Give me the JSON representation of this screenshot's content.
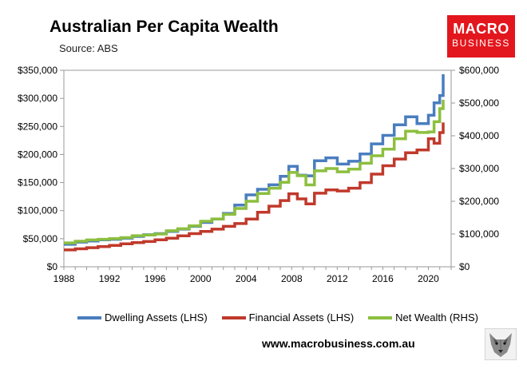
{
  "header": {
    "title": "Australian Per Capita Wealth",
    "source": "Source: ABS"
  },
  "logo": {
    "line1": "MACRO",
    "line2": "BUSINESS"
  },
  "footer": {
    "url": "www.macrobusiness.com.au"
  },
  "chart_data": {
    "type": "line",
    "title": "Australian Per Capita Wealth",
    "y_left": {
      "min": 0,
      "max": 350000,
      "step": 50000,
      "tick_labels": [
        "$0",
        "$50,000",
        "$100,000",
        "$150,000",
        "$200,000",
        "$250,000",
        "$300,000",
        "$350,000"
      ]
    },
    "y_right": {
      "min": 0,
      "max": 600000,
      "step": 100000,
      "tick_labels": [
        "$0",
        "$100,000",
        "$200,000",
        "$300,000",
        "$400,000",
        "$500,000",
        "$600,000"
      ]
    },
    "x_axis": {
      "min": 1988,
      "max": 2022,
      "tick_labels": [
        "1988",
        "1992",
        "1996",
        "2000",
        "2004",
        "2008",
        "2012",
        "2016",
        "2020"
      ]
    },
    "grid": false,
    "legend_position": "bottom",
    "series": [
      {
        "name": "Dwelling Assets (LHS)",
        "axis": "left",
        "color": "#4a7dbf",
        "x": [
          1988,
          1989,
          1990,
          1991,
          1992,
          1993,
          1994,
          1995,
          1996,
          1997,
          1998,
          1999,
          2000,
          2001,
          2002,
          2003,
          2004,
          2005,
          2006,
          2007,
          2007.75,
          2008.5,
          2009.25,
          2010,
          2011,
          2012,
          2013,
          2014,
          2015,
          2016,
          2017,
          2018,
          2019,
          2020,
          2020.5,
          2021,
          2021.3
        ],
        "y": [
          40000,
          44000,
          46000,
          48000,
          49000,
          51000,
          54000,
          57000,
          59000,
          63000,
          67000,
          72000,
          79000,
          85000,
          95000,
          110000,
          128000,
          138000,
          146000,
          161000,
          179000,
          163000,
          162000,
          189000,
          194000,
          183000,
          188000,
          201000,
          219000,
          234000,
          253000,
          267000,
          255000,
          270000,
          292000,
          305000,
          343000
        ]
      },
      {
        "name": "Financial Assets (LHS)",
        "axis": "left",
        "color": "#c0392b",
        "x": [
          1988,
          1989,
          1990,
          1991,
          1992,
          1993,
          1994,
          1995,
          1996,
          1997,
          1998,
          1999,
          2000,
          2001,
          2002,
          2003,
          2004,
          2005,
          2006,
          2007,
          2007.75,
          2008.5,
          2009.25,
          2010,
          2011,
          2012,
          2013,
          2014,
          2015,
          2016,
          2017,
          2018,
          2019,
          2020,
          2020.5,
          2021,
          2021.3
        ],
        "y": [
          30000,
          32000,
          34000,
          36000,
          38000,
          41000,
          43000,
          45000,
          48000,
          51000,
          55000,
          59000,
          63000,
          67000,
          72000,
          77000,
          85000,
          97000,
          108000,
          118000,
          130000,
          121000,
          112000,
          131000,
          137000,
          135000,
          140000,
          150000,
          165000,
          180000,
          192000,
          203000,
          208000,
          228000,
          220000,
          239000,
          257000
        ]
      },
      {
        "name": "Net Wealth (RHS)",
        "axis": "right",
        "color": "#8cbf3f",
        "x": [
          1988,
          1989,
          1990,
          1991,
          1992,
          1993,
          1994,
          1995,
          1996,
          1997,
          1998,
          1999,
          2000,
          2001,
          2002,
          2003,
          2004,
          2005,
          2006,
          2007,
          2007.75,
          2008.5,
          2009.25,
          2010,
          2011,
          2012,
          2013,
          2014,
          2015,
          2016,
          2017,
          2018,
          2019,
          2020,
          2020.5,
          2021,
          2021.3
        ],
        "y": [
          73000,
          78000,
          82000,
          84000,
          86000,
          89000,
          95000,
          97000,
          100000,
          110000,
          116000,
          125000,
          139000,
          146000,
          160000,
          178000,
          200000,
          224000,
          240000,
          258000,
          288000,
          278000,
          250000,
          293000,
          300000,
          290000,
          298000,
          316000,
          339000,
          359000,
          391000,
          414000,
          410000,
          412000,
          443000,
          483000,
          510000
        ]
      }
    ]
  }
}
